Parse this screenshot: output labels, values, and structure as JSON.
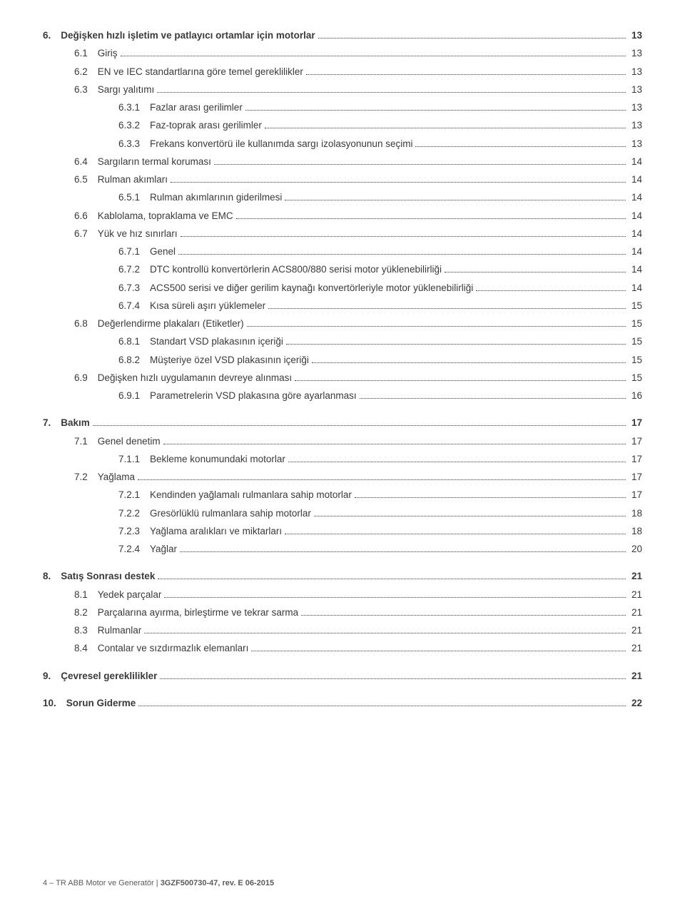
{
  "footer": {
    "prefix": "4 – TR ABB Motor ve Generatör | ",
    "code": "3GZF500730-47, rev. E 06-2015"
  },
  "entries": [
    {
      "level": 0,
      "bold": true,
      "num": "6.",
      "title": "Değişken hızlı işletim ve patlayıcı ortamlar için motorlar",
      "page": "13",
      "gap": false
    },
    {
      "level": 1,
      "bold": false,
      "num": "6.1",
      "title": "Giriş",
      "page": "13",
      "gap": false
    },
    {
      "level": 1,
      "bold": false,
      "num": "6.2",
      "title": "EN ve IEC standartlarına göre temel gereklilikler",
      "page": "13",
      "gap": false
    },
    {
      "level": 1,
      "bold": false,
      "num": "6.3",
      "title": "Sargı yalıtımı",
      "page": "13",
      "gap": false
    },
    {
      "level": 2,
      "bold": false,
      "num": "6.3.1",
      "title": "Fazlar arası gerilimler",
      "page": "13",
      "gap": false
    },
    {
      "level": 2,
      "bold": false,
      "num": "6.3.2",
      "title": "Faz-toprak arası gerilimler",
      "page": "13",
      "gap": false
    },
    {
      "level": 2,
      "bold": false,
      "num": "6.3.3",
      "title": "Frekans konvertörü ile kullanımda sargı izolasyonunun seçimi",
      "page": "13",
      "gap": false
    },
    {
      "level": 1,
      "bold": false,
      "num": "6.4",
      "title": "Sargıların termal koruması",
      "page": "14",
      "gap": false
    },
    {
      "level": 1,
      "bold": false,
      "num": "6.5",
      "title": "Rulman akımları",
      "page": "14",
      "gap": false
    },
    {
      "level": 2,
      "bold": false,
      "num": "6.5.1",
      "title": "Rulman akımlarının giderilmesi",
      "page": "14",
      "gap": false
    },
    {
      "level": 1,
      "bold": false,
      "num": "6.6",
      "title": "Kablolama, topraklama ve EMC",
      "page": "14",
      "gap": false
    },
    {
      "level": 1,
      "bold": false,
      "num": "6.7",
      "title": "Yük ve hız sınırları",
      "page": "14",
      "gap": false
    },
    {
      "level": 2,
      "bold": false,
      "num": "6.7.1",
      "title": "Genel",
      "page": "14",
      "gap": false
    },
    {
      "level": 2,
      "bold": false,
      "num": "6.7.2",
      "title": "DTC kontrollü konvertörlerin ACS800/880 serisi motor yüklenebilirliği",
      "page": "14",
      "gap": false
    },
    {
      "level": 2,
      "bold": false,
      "num": "6.7.3",
      "title": "ACS500 serisi ve diğer gerilim kaynağı konvertörleriyle motor yüklenebilirliği",
      "page": "14",
      "gap": false
    },
    {
      "level": 2,
      "bold": false,
      "num": "6.7.4",
      "title": "Kısa süreli aşırı yüklemeler",
      "page": "15",
      "gap": false
    },
    {
      "level": 1,
      "bold": false,
      "num": "6.8",
      "title": "Değerlendirme plakaları (Etiketler)",
      "page": "15",
      "gap": false
    },
    {
      "level": 2,
      "bold": false,
      "num": "6.8.1",
      "title": "Standart VSD plakasının içeriği",
      "page": "15",
      "gap": false
    },
    {
      "level": 2,
      "bold": false,
      "num": "6.8.2",
      "title": "Müşteriye özel VSD plakasının içeriği",
      "page": "15",
      "gap": false
    },
    {
      "level": 1,
      "bold": false,
      "num": "6.9",
      "title": "Değişken hızlı uygulamanın devreye alınması",
      "page": "15",
      "gap": false
    },
    {
      "level": 2,
      "bold": false,
      "num": "6.9.1",
      "title": "Parametrelerin VSD plakasına göre ayarlanması",
      "page": "16",
      "gap": false
    },
    {
      "level": 0,
      "bold": true,
      "num": "7.",
      "title": "Bakım",
      "page": "17",
      "gap": true
    },
    {
      "level": 1,
      "bold": false,
      "num": "7.1",
      "title": "Genel denetim",
      "page": "17",
      "gap": false
    },
    {
      "level": 2,
      "bold": false,
      "num": "7.1.1",
      "title": "Bekleme konumundaki motorlar",
      "page": "17",
      "gap": false
    },
    {
      "level": 1,
      "bold": false,
      "num": "7.2",
      "title": "Yağlama",
      "page": "17",
      "gap": false
    },
    {
      "level": 2,
      "bold": false,
      "num": "7.2.1",
      "title": "Kendinden yağlamalı rulmanlara sahip motorlar",
      "page": "17",
      "gap": false
    },
    {
      "level": 2,
      "bold": false,
      "num": "7.2.2",
      "title": "Gresörlüklü rulmanlara sahip motorlar",
      "page": "18",
      "gap": false
    },
    {
      "level": 2,
      "bold": false,
      "num": "7.2.3",
      "title": "Yağlama aralıkları ve miktarları",
      "page": "18",
      "gap": false
    },
    {
      "level": 2,
      "bold": false,
      "num": "7.2.4",
      "title": "Yağlar",
      "page": "20",
      "gap": false
    },
    {
      "level": 0,
      "bold": true,
      "num": "8.",
      "title": "Satış Sonrası destek",
      "page": "21",
      "gap": true
    },
    {
      "level": 1,
      "bold": false,
      "num": "8.1",
      "title": "Yedek parçalar",
      "page": "21",
      "gap": false
    },
    {
      "level": 1,
      "bold": false,
      "num": "8.2",
      "title": "Parçalarına ayırma, birleştirme ve tekrar sarma",
      "page": "21",
      "gap": false
    },
    {
      "level": 1,
      "bold": false,
      "num": "8.3",
      "title": "Rulmanlar",
      "page": "21",
      "gap": false
    },
    {
      "level": 1,
      "bold": false,
      "num": "8.4",
      "title": "Contalar ve sızdırmazlık elemanları",
      "page": "21",
      "gap": false
    },
    {
      "level": 0,
      "bold": true,
      "num": "9.",
      "title": "Çevresel gereklilikler",
      "page": "21",
      "gap": true
    },
    {
      "level": 0,
      "bold": true,
      "num": "10.",
      "title": "Sorun Giderme",
      "page": "22",
      "gap": true
    }
  ]
}
